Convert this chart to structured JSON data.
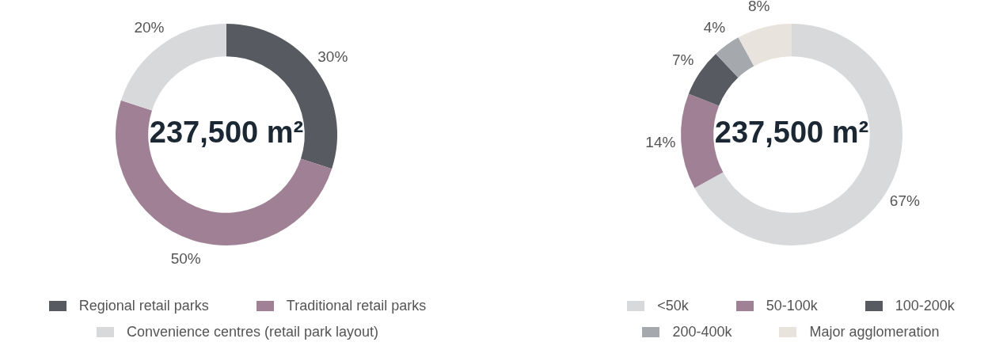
{
  "chart_data": [
    {
      "type": "donut",
      "categories": [
        "Regional retail parks",
        "Traditional retail parks",
        "Convenience centres (retail park layout)"
      ],
      "values": [
        30,
        50,
        20
      ],
      "colors": [
        "#575a60",
        "#a08095",
        "#d7d9db"
      ],
      "value_labels": [
        "30%",
        "50%",
        "20%"
      ],
      "annotations": [
        "237,500 m²"
      ],
      "legend": "bottom"
    },
    {
      "type": "donut",
      "categories": [
        "<50k",
        "50-100k",
        "100-200k",
        "200-400k",
        "Major agglomeration"
      ],
      "values": [
        67,
        14,
        7,
        4,
        8
      ],
      "colors": [
        "#d7d9db",
        "#a08095",
        "#575a60",
        "#a5a8ad",
        "#e8e3dc"
      ],
      "value_labels": [
        "67%",
        "14%",
        "7%",
        "4%",
        "8%"
      ],
      "annotations": [
        "237,500 m²"
      ],
      "legend": "bottom"
    }
  ]
}
